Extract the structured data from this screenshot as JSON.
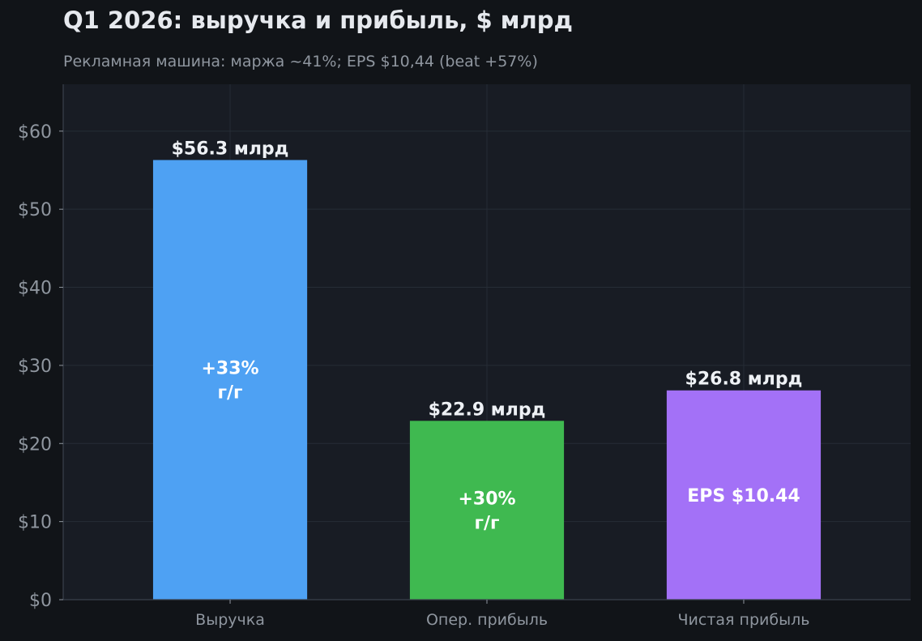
{
  "chart_data": {
    "type": "bar",
    "title": "Q1 2026: выручка и прибыль, $ млрд",
    "subtitle": "Рекламная машина: маржа ~41%; EPS $10,44 (beat +57%)",
    "categories": [
      "Выручка",
      "Опер. прибыль",
      "Чистая прибыль"
    ],
    "values": [
      56.3,
      22.9,
      26.8
    ],
    "value_labels": [
      "$56.3 млрд",
      "$22.9 млрд",
      "$26.8 млрд"
    ],
    "inner_labels": [
      [
        "+33%",
        "г/г"
      ],
      [
        "+30%",
        "г/г"
      ],
      [
        "EPS $10.44"
      ]
    ],
    "colors": [
      "#4ea1f3",
      "#3fb950",
      "#a371f7"
    ],
    "ylim": [
      0,
      66
    ],
    "yticks": [
      0,
      10,
      20,
      30,
      40,
      50,
      60
    ],
    "ytick_labels": [
      "$0",
      "$10",
      "$20",
      "$30",
      "$40",
      "$50",
      "$60"
    ],
    "xlabel": "",
    "ylabel": "",
    "grid": true
  }
}
